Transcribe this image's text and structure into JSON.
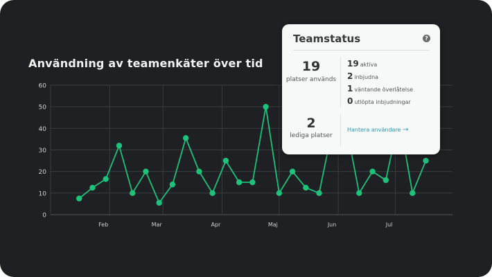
{
  "chart_data": {
    "type": "line",
    "title": "Användning av teamenkäter över tid",
    "xlabel": "",
    "ylabel": "",
    "ylim": [
      0,
      60
    ],
    "yticks": [
      0,
      10,
      20,
      30,
      40,
      50,
      60
    ],
    "xlim": [
      "2023-01-01",
      "2023-07-31"
    ],
    "xticks": [
      {
        "date": "2023-02-01",
        "label": "Feb"
      },
      {
        "date": "2023-03-01",
        "label": "Mar"
      },
      {
        "date": "2023-04-01",
        "label": "Apr"
      },
      {
        "date": "2023-05-01",
        "label": "Maj"
      },
      {
        "date": "2023-06-01",
        "label": "Jun"
      },
      {
        "date": "2023-07-01",
        "label": "Jul"
      }
    ],
    "grid": true,
    "color": "#1fc27a",
    "x": [
      "2023-01-16",
      "2023-01-23",
      "2023-01-30",
      "2023-02-06",
      "2023-02-13",
      "2023-02-20",
      "2023-02-27",
      "2023-03-06",
      "2023-03-13",
      "2023-03-20",
      "2023-03-27",
      "2023-04-03",
      "2023-04-10",
      "2023-04-17",
      "2023-04-24",
      "2023-05-01",
      "2023-05-08",
      "2023-05-15",
      "2023-05-22",
      "2023-05-29",
      "2023-06-05",
      "2023-06-12",
      "2023-06-19",
      "2023-06-26",
      "2023-07-03",
      "2023-07-10",
      "2023-07-17"
    ],
    "values": [
      7.5,
      12.5,
      16.5,
      32,
      10,
      20,
      5.5,
      14,
      35.5,
      20,
      10,
      25,
      15,
      15,
      50,
      10,
      20,
      12.5,
      10,
      40,
      42,
      10,
      20,
      16,
      45,
      10,
      25
    ]
  },
  "card": {
    "title": "Teamstatus",
    "help_icon": "question-circle-icon",
    "used_value": "19",
    "used_label": "platser används",
    "free_value": "2",
    "free_label": "lediga platser",
    "stats": [
      {
        "value": "19",
        "label": "aktiva"
      },
      {
        "value": "2",
        "label": "inbjudna"
      },
      {
        "value": "1",
        "label": "väntande överlåtelse"
      },
      {
        "value": "0",
        "label": "utlöpta inbjudningar"
      }
    ],
    "link": "Hantera användare",
    "link_icon": "arrow-right-icon",
    "link_color": "#2a9bb0"
  }
}
